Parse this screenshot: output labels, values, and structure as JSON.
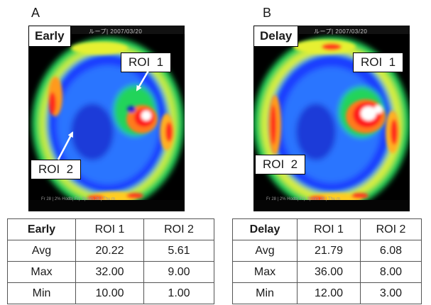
{
  "panels": [
    {
      "letter": "A",
      "phase": "Early",
      "header": "ループ| 2007/03/20",
      "footer": "Fr 28 | 2% Hodb| Fr|: 3|:mm 28 | Thu m",
      "roi1": "ROI  1",
      "roi2": "ROI  2",
      "table": {
        "columns": [
          "Early",
          "ROI  1",
          "ROI  2"
        ],
        "rows": [
          [
            "Avg",
            "20.22",
            "5.61"
          ],
          [
            "Max",
            "32.00",
            "9.00"
          ],
          [
            "Min",
            "10.00",
            "1.00"
          ]
        ]
      }
    },
    {
      "letter": "B",
      "phase": "Delay",
      "header": "ループ| 2007/03/20",
      "footer": "Fr 28 | 2% Hodb| Fr|: 3|:mm 28 | Thu m",
      "roi1": "ROI  1",
      "roi2": "ROI  2",
      "table": {
        "columns": [
          "Delay",
          "ROI  1",
          "ROI  2"
        ],
        "rows": [
          [
            "Avg",
            "21.79",
            "6.08"
          ],
          [
            "Max",
            "36.00",
            "8.00"
          ],
          [
            "Min",
            "12.00",
            "3.00"
          ]
        ]
      }
    }
  ]
}
